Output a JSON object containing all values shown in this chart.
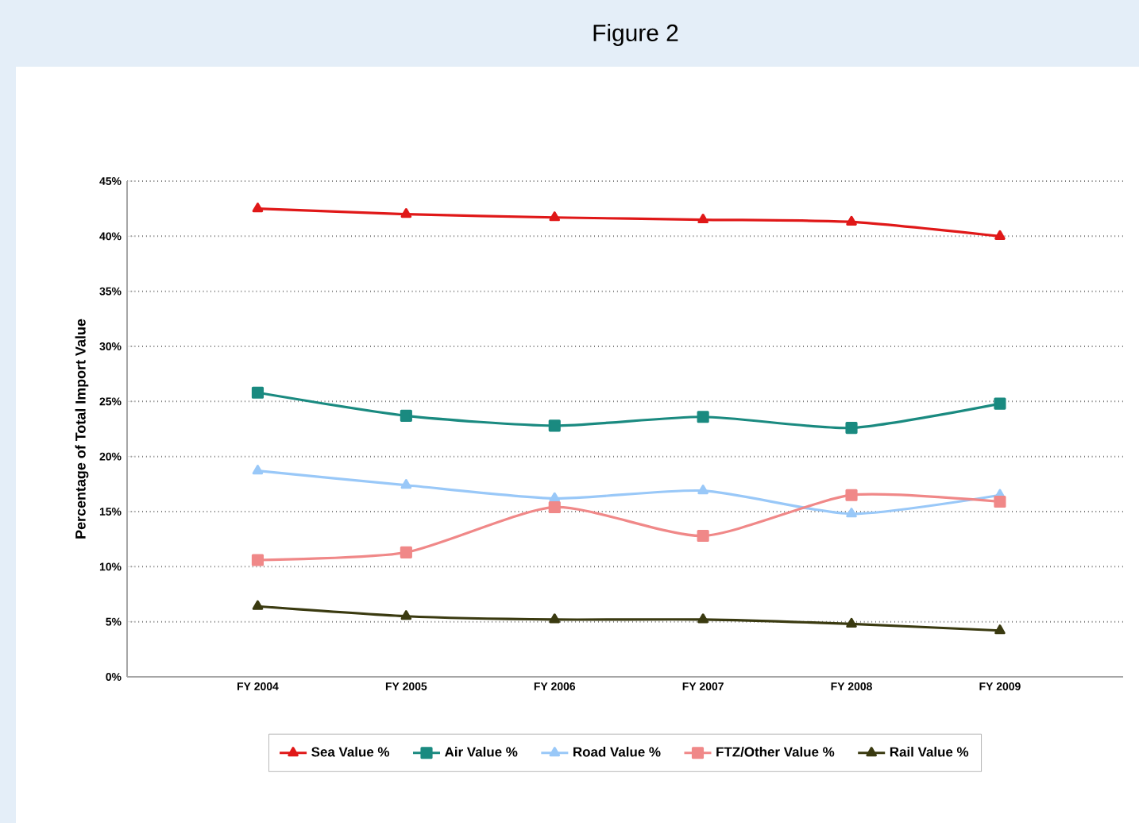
{
  "chart_data": {
    "type": "line",
    "title": "Figure 2",
    "ylabel": "Percentage of Total Import Value",
    "categories": [
      "FY 2004",
      "FY 2005",
      "FY 2006",
      "FY 2007",
      "FY 2008",
      "FY 2009"
    ],
    "series": [
      {
        "name": "Sea Value %",
        "color": "#e01818",
        "marker": "triangle",
        "values": [
          42.5,
          42.0,
          41.7,
          41.5,
          41.3,
          40.0
        ]
      },
      {
        "name": "Air Value %",
        "color": "#1a8a80",
        "marker": "square",
        "values": [
          25.8,
          23.7,
          22.8,
          23.6,
          22.6,
          24.8
        ]
      },
      {
        "name": "Road Value %",
        "color": "#99c8f8",
        "marker": "triangle",
        "values": [
          18.7,
          17.4,
          16.2,
          16.9,
          14.8,
          16.5
        ]
      },
      {
        "name": "FTZ/Other Value %",
        "color": "#f08888",
        "marker": "square",
        "values": [
          10.6,
          11.3,
          15.4,
          12.8,
          16.5,
          15.9
        ]
      },
      {
        "name": "Rail Value %",
        "color": "#3a3a10",
        "marker": "triangle",
        "values": [
          6.4,
          5.5,
          5.2,
          5.2,
          4.8,
          4.2
        ]
      }
    ],
    "ylim": [
      0,
      45
    ],
    "yticks": [
      {
        "value": 0,
        "label": "0%"
      },
      {
        "value": 5,
        "label": "5%"
      },
      {
        "value": 10,
        "label": "10%"
      },
      {
        "value": 15,
        "label": "15%"
      },
      {
        "value": 20,
        "label": "20%"
      },
      {
        "value": 25,
        "label": "25%"
      },
      {
        "value": 30,
        "label": "30%"
      },
      {
        "value": 35,
        "label": "35%"
      },
      {
        "value": 40,
        "label": "40%"
      },
      {
        "value": 45,
        "label": "45%"
      }
    ],
    "grid": "y",
    "legend": "bottom",
    "line_style": "solid"
  }
}
